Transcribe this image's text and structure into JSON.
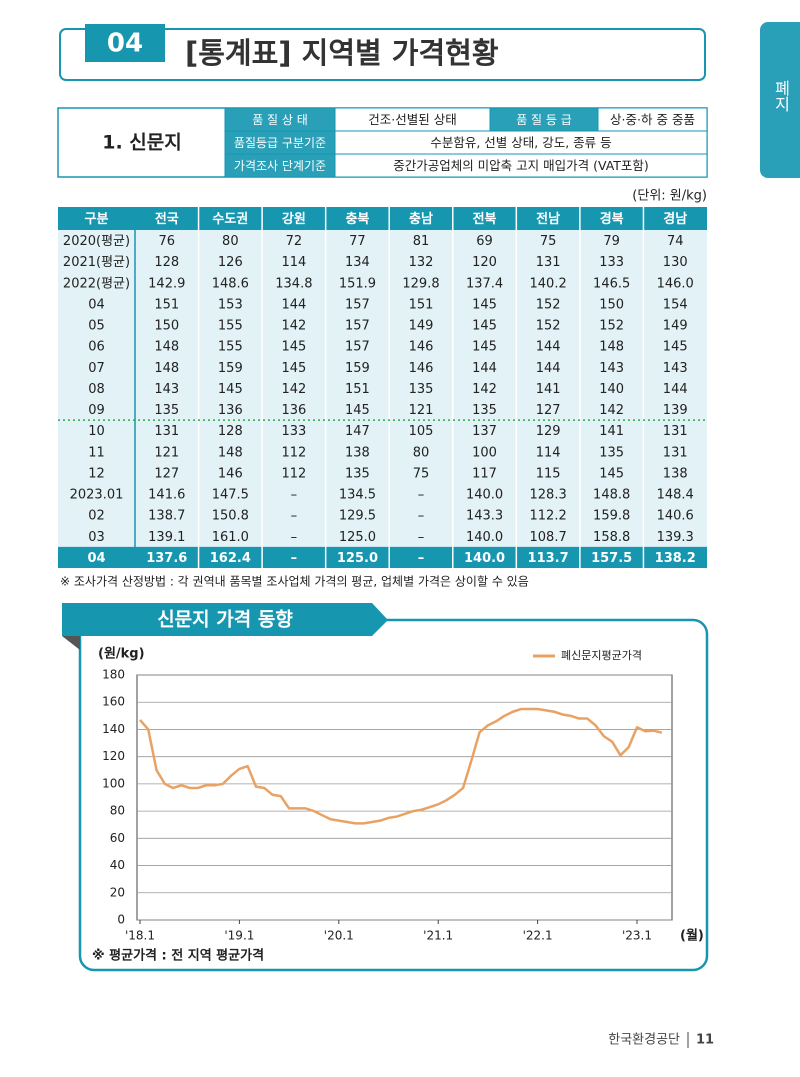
{
  "header": {
    "number": "04",
    "title": "[통계표] 지역별 가격현황"
  },
  "side_tab": "폐지",
  "info": {
    "name": "1. 신문지",
    "rows": [
      [
        "품 질 상 태",
        "건조·선별된 상태",
        "품 질 등 급",
        "상·중·하 중 중품"
      ],
      [
        "품질등급 구분기준",
        "수분함유, 선별 상태, 강도, 종류 등"
      ],
      [
        "가격조사 단계기준",
        "중간가공업체의 미압축 고지 매입가격 (VAT포함)"
      ]
    ]
  },
  "unit": "(단위: 원/kg)",
  "table": {
    "columns": [
      "구분",
      "전국",
      "수도권",
      "강원",
      "충북",
      "충남",
      "전북",
      "전남",
      "경북",
      "경남"
    ],
    "rows": [
      [
        "2020(평균)",
        "76",
        "80",
        "72",
        "77",
        "81",
        "69",
        "75",
        "79",
        "74"
      ],
      [
        "2021(평균)",
        "128",
        "126",
        "114",
        "134",
        "132",
        "120",
        "131",
        "133",
        "130"
      ],
      [
        "2022(평균)",
        "142.9",
        "148.6",
        "134.8",
        "151.9",
        "129.8",
        "137.4",
        "140.2",
        "146.5",
        "146.0"
      ],
      [
        "04",
        "151",
        "153",
        "144",
        "157",
        "151",
        "145",
        "152",
        "150",
        "154"
      ],
      [
        "05",
        "150",
        "155",
        "142",
        "157",
        "149",
        "145",
        "152",
        "152",
        "149"
      ],
      [
        "06",
        "148",
        "155",
        "145",
        "157",
        "146",
        "145",
        "144",
        "148",
        "145"
      ],
      [
        "07",
        "148",
        "159",
        "145",
        "159",
        "146",
        "144",
        "144",
        "143",
        "143"
      ],
      [
        "08",
        "143",
        "145",
        "142",
        "151",
        "135",
        "142",
        "141",
        "140",
        "144"
      ],
      [
        "09",
        "135",
        "136",
        "136",
        "145",
        "121",
        "135",
        "127",
        "142",
        "139"
      ],
      [
        "10",
        "131",
        "128",
        "133",
        "147",
        "105",
        "137",
        "129",
        "141",
        "131"
      ],
      [
        "11",
        "121",
        "148",
        "112",
        "138",
        "80",
        "100",
        "114",
        "135",
        "131"
      ],
      [
        "12",
        "127",
        "146",
        "112",
        "135",
        "75",
        "117",
        "115",
        "145",
        "138"
      ],
      [
        "2023.01",
        "141.6",
        "147.5",
        "–",
        "134.5",
        "–",
        "140.0",
        "128.3",
        "148.8",
        "148.4"
      ],
      [
        "02",
        "138.7",
        "150.8",
        "–",
        "129.5",
        "–",
        "143.3",
        "112.2",
        "159.8",
        "140.6"
      ],
      [
        "03",
        "139.1",
        "161.0",
        "–",
        "125.0",
        "–",
        "140.0",
        "108.7",
        "158.8",
        "139.3"
      ],
      [
        "04",
        "137.6",
        "162.4",
        "–",
        "125.0",
        "–",
        "140.0",
        "113.7",
        "157.5",
        "138.2"
      ]
    ]
  },
  "note": "※ 조사가격 산정방법 : 각 권역내 품목별 조사업체 가격의 평균, 업체별 가격은 상이할 수 있음",
  "chart_section_title": "신문지 가격 동향",
  "chart_data": {
    "type": "line",
    "y_label": "(원/kg)",
    "x_label": "(월)",
    "categories": [
      "'18.1",
      null,
      null,
      null,
      null,
      null,
      null,
      null,
      null,
      null,
      null,
      null,
      "'19.1",
      null,
      null,
      null,
      null,
      null,
      null,
      null,
      null,
      null,
      null,
      null,
      "'20.1",
      null,
      null,
      null,
      null,
      null,
      null,
      null,
      null,
      null,
      null,
      null,
      "'21.1",
      null,
      null,
      null,
      null,
      null,
      null,
      null,
      null,
      null,
      null,
      null,
      "'22.1",
      null,
      null,
      null,
      null,
      null,
      null,
      null,
      null,
      null,
      null,
      null,
      "'23.1",
      null,
      null,
      null
    ],
    "series": [
      {
        "name": "폐신문지평균가격",
        "color": "#e9a263",
        "values": [
          147,
          140,
          110,
          100,
          97,
          99,
          97,
          97,
          99,
          99,
          100,
          106,
          111,
          113,
          98,
          97,
          92,
          91,
          82,
          82,
          82,
          80,
          77,
          74,
          73,
          72,
          71,
          71,
          72,
          73,
          75,
          76,
          78,
          80,
          81,
          83,
          85,
          88,
          92,
          97,
          117,
          138,
          143,
          146,
          150,
          153,
          155,
          155,
          155,
          154,
          153,
          151,
          150,
          148,
          148,
          143,
          135,
          131,
          121,
          127,
          141.6,
          138.7,
          139.1,
          137.6
        ]
      }
    ],
    "ylim": [
      0,
      180
    ],
    "yticks": [
      0,
      20,
      40,
      60,
      80,
      100,
      120,
      140,
      160,
      180
    ],
    "grid": true,
    "legend": "top-right"
  },
  "chart_note": "※ 평균가격 : 전 지역 평균가격",
  "footer": {
    "org": "한국환경공단",
    "page": "11"
  }
}
